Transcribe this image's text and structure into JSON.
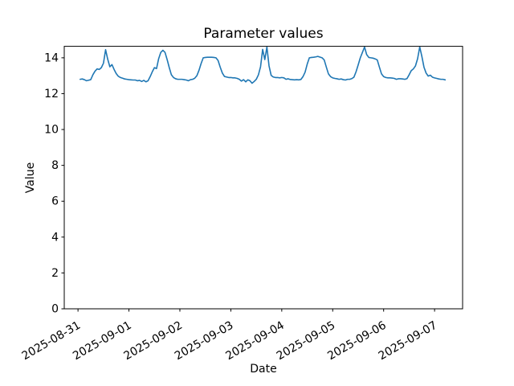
{
  "chart_data": {
    "type": "line",
    "title": "Parameter values",
    "xlabel": "Date",
    "ylabel": "Value",
    "grid": false,
    "legend": "none",
    "series_name": "Parameter values",
    "series_color": "#1f77b4",
    "y_ticks": [
      0,
      2,
      4,
      6,
      8,
      10,
      12,
      14
    ],
    "ylim": [
      0,
      14.64
    ],
    "x_tick_labels": [
      "2025-08-31",
      "2025-09-01",
      "2025-09-02",
      "2025-09-03",
      "2025-09-04",
      "2025-09-05",
      "2025-09-06",
      "2025-09-07"
    ],
    "x_tick_positions_days": [
      0,
      1,
      2,
      3,
      4,
      5,
      6,
      7
    ],
    "xlim_days": [
      -0.27,
      7.55
    ],
    "x_start": "2025-08-31 01:00",
    "x_step_hours": 1,
    "values": [
      12.8,
      12.82,
      12.78,
      12.72,
      12.75,
      12.78,
      13.05,
      13.25,
      13.38,
      13.35,
      13.45,
      13.7,
      14.45,
      13.92,
      13.5,
      13.62,
      13.35,
      13.12,
      12.97,
      12.9,
      12.86,
      12.82,
      12.8,
      12.78,
      12.77,
      12.76,
      12.76,
      12.72,
      12.74,
      12.68,
      12.74,
      12.66,
      12.72,
      12.95,
      13.22,
      13.45,
      13.4,
      13.95,
      14.3,
      14.42,
      14.3,
      13.9,
      13.45,
      13.05,
      12.9,
      12.83,
      12.8,
      12.8,
      12.8,
      12.78,
      12.76,
      12.72,
      12.78,
      12.8,
      12.86,
      13.0,
      13.3,
      13.68,
      14.0,
      14.02,
      14.03,
      14.03,
      14.03,
      14.02,
      14.0,
      13.85,
      13.48,
      13.15,
      12.96,
      12.93,
      12.9,
      12.9,
      12.88,
      12.88,
      12.85,
      12.8,
      12.7,
      12.78,
      12.66,
      12.77,
      12.72,
      12.58,
      12.68,
      12.8,
      13.05,
      13.5,
      14.47,
      13.9,
      14.6,
      13.55,
      13.02,
      12.93,
      12.9,
      12.9,
      12.88,
      12.9,
      12.88,
      12.8,
      12.83,
      12.79,
      12.78,
      12.77,
      12.78,
      12.77,
      12.79,
      12.95,
      13.2,
      13.65,
      14.0,
      14.02,
      14.03,
      14.05,
      14.08,
      14.04,
      14.0,
      13.88,
      13.48,
      13.1,
      12.95,
      12.88,
      12.85,
      12.83,
      12.8,
      12.82,
      12.78,
      12.76,
      12.8,
      12.8,
      12.84,
      12.92,
      13.22,
      13.6,
      14.0,
      14.3,
      14.6,
      14.18,
      14.02,
      14.0,
      13.98,
      13.94,
      13.88,
      13.48,
      13.1,
      12.95,
      12.9,
      12.88,
      12.88,
      12.87,
      12.85,
      12.8,
      12.83,
      12.83,
      12.82,
      12.8,
      12.84,
      13.05,
      13.28,
      13.38,
      13.55,
      13.95,
      14.6,
      14.08,
      13.48,
      13.15,
      12.98,
      13.03,
      12.92,
      12.88,
      12.85,
      12.82,
      12.8,
      12.8,
      12.77
    ]
  }
}
